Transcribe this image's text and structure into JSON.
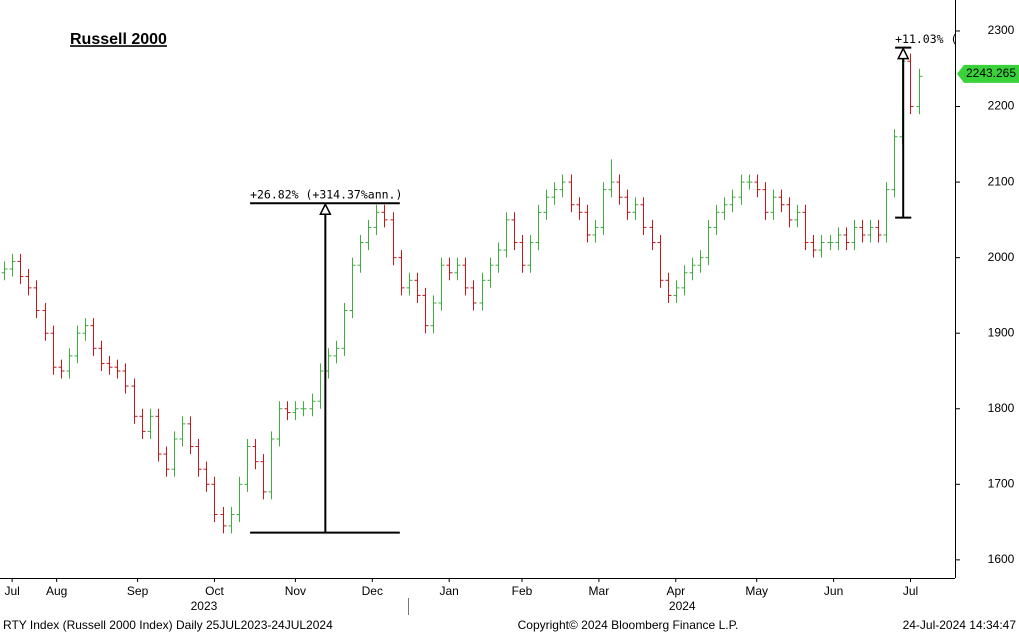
{
  "chart_data": {
    "type": "ohlc",
    "title": "Russell 2000",
    "up_color": "#3fae3f",
    "down_color": "#c8161d",
    "open": [
      1980,
      1985,
      1995,
      1975,
      1960,
      1930,
      1900,
      1855,
      1850,
      1870,
      1900,
      1910,
      1880,
      1860,
      1855,
      1850,
      1830,
      1790,
      1770,
      1790,
      1740,
      1720,
      1760,
      1780,
      1750,
      1720,
      1700,
      1660,
      1645,
      1660,
      1700,
      1750,
      1730,
      1690,
      1760,
      1800,
      1795,
      1800,
      1800,
      1810,
      1850,
      1870,
      1880,
      1930,
      1990,
      2020,
      2040,
      2060,
      2050,
      2000,
      1960,
      1970,
      1950,
      1910,
      1940,
      1990,
      1980,
      1990,
      1960,
      1940,
      1970,
      1990,
      2010,
      2050,
      2020,
      1990,
      2020,
      2060,
      2080,
      2090,
      2100,
      2070,
      2060,
      2030,
      2040,
      2090,
      2100,
      2080,
      2060,
      2070,
      2040,
      2020,
      1970,
      1950,
      1960,
      1980,
      1990,
      2000,
      2040,
      2060,
      2070,
      2080,
      2100,
      2100,
      2090,
      2060,
      2080,
      2070,
      2050,
      2060,
      2020,
      2010,
      2020,
      2020,
      2030,
      2020,
      2040,
      2030,
      2040,
      2030,
      2090,
      2160,
      2260,
      2200
    ],
    "high": [
      1995,
      2005,
      2005,
      1985,
      1970,
      1940,
      1910,
      1865,
      1880,
      1910,
      1920,
      1920,
      1890,
      1870,
      1865,
      1860,
      1840,
      1800,
      1800,
      1800,
      1750,
      1770,
      1790,
      1790,
      1760,
      1730,
      1710,
      1670,
      1670,
      1710,
      1760,
      1760,
      1740,
      1770,
      1810,
      1810,
      1810,
      1810,
      1820,
      1860,
      1880,
      1890,
      1940,
      2000,
      2030,
      2050,
      2070,
      2070,
      2060,
      2010,
      1980,
      1980,
      1960,
      1950,
      2000,
      2000,
      2000,
      2000,
      1970,
      1980,
      2000,
      2020,
      2060,
      2060,
      2030,
      2030,
      2070,
      2090,
      2100,
      2110,
      2110,
      2080,
      2070,
      2050,
      2100,
      2130,
      2110,
      2090,
      2080,
      2080,
      2050,
      2030,
      1980,
      1970,
      1990,
      2000,
      2010,
      2050,
      2070,
      2080,
      2090,
      2110,
      2110,
      2110,
      2100,
      2090,
      2090,
      2080,
      2070,
      2070,
      2030,
      2030,
      2030,
      2040,
      2040,
      2050,
      2050,
      2050,
      2050,
      2100,
      2170,
      2275,
      2270,
      2250
    ],
    "low": [
      1970,
      1975,
      1965,
      1950,
      1920,
      1890,
      1845,
      1840,
      1840,
      1860,
      1890,
      1870,
      1850,
      1845,
      1840,
      1820,
      1780,
      1760,
      1760,
      1730,
      1710,
      1710,
      1750,
      1740,
      1710,
      1690,
      1650,
      1635,
      1635,
      1650,
      1690,
      1720,
      1680,
      1680,
      1750,
      1785,
      1785,
      1790,
      1790,
      1800,
      1840,
      1860,
      1870,
      1920,
      1980,
      2010,
      2030,
      2040,
      1990,
      1950,
      1950,
      1940,
      1900,
      1900,
      1930,
      1970,
      1970,
      1950,
      1930,
      1930,
      1960,
      1980,
      2000,
      2010,
      1980,
      1980,
      2010,
      2050,
      2070,
      2080,
      2060,
      2050,
      2020,
      2020,
      2030,
      2080,
      2070,
      2050,
      2050,
      2030,
      2010,
      1960,
      1940,
      1940,
      1950,
      1970,
      1980,
      1990,
      2030,
      2050,
      2060,
      2070,
      2090,
      2080,
      2050,
      2050,
      2060,
      2040,
      2040,
      2010,
      2000,
      2000,
      2010,
      2010,
      2010,
      2010,
      2020,
      2020,
      2020,
      2020,
      2080,
      2150,
      2190,
      2190
    ],
    "close": [
      1985,
      1995,
      1975,
      1960,
      1930,
      1900,
      1855,
      1850,
      1870,
      1900,
      1910,
      1880,
      1860,
      1855,
      1850,
      1830,
      1790,
      1770,
      1790,
      1740,
      1720,
      1760,
      1780,
      1750,
      1720,
      1700,
      1660,
      1645,
      1660,
      1700,
      1750,
      1730,
      1690,
      1760,
      1800,
      1795,
      1800,
      1800,
      1810,
      1850,
      1870,
      1880,
      1930,
      1990,
      2020,
      2040,
      2060,
      2050,
      2000,
      1960,
      1970,
      1950,
      1910,
      1940,
      1990,
      1980,
      1990,
      1960,
      1940,
      1970,
      1990,
      2010,
      2050,
      2020,
      1990,
      2020,
      2060,
      2080,
      2090,
      2100,
      2070,
      2060,
      2030,
      2040,
      2090,
      2100,
      2080,
      2060,
      2070,
      2040,
      2020,
      1970,
      1950,
      1960,
      1980,
      1990,
      2000,
      2040,
      2060,
      2070,
      2080,
      2100,
      2100,
      2090,
      2060,
      2080,
      2070,
      2050,
      2060,
      2020,
      2010,
      2020,
      2020,
      2030,
      2020,
      2040,
      2030,
      2040,
      2030,
      2090,
      2160,
      2260,
      2200,
      2240
    ],
    "xlim": [
      -0.5,
      117.5
    ],
    "xticks": [
      {
        "value": 1,
        "label": "Jul"
      },
      {
        "value": 6.5,
        "label": "Aug"
      },
      {
        "value": 16.5,
        "label": "Sep"
      },
      {
        "value": 26,
        "label": "Oct"
      },
      {
        "value": 36,
        "label": "Nov"
      },
      {
        "value": 45.5,
        "label": "Dec"
      },
      {
        "value": 55,
        "label": "Jan"
      },
      {
        "value": 64,
        "label": "Feb"
      },
      {
        "value": 73.5,
        "label": "Mar"
      },
      {
        "value": 83,
        "label": "Apr"
      },
      {
        "value": 93,
        "label": "May"
      },
      {
        "value": 102.5,
        "label": "Jun"
      },
      {
        "value": 112,
        "label": "Jul"
      }
    ],
    "year_labels": [
      {
        "value": 24.7,
        "label": "2023"
      },
      {
        "value": 83.8,
        "label": "2024"
      }
    ],
    "ylim": [
      1576,
      2341
    ],
    "yticks": [
      1600,
      1700,
      1800,
      1900,
      2000,
      2100,
      2200,
      2300
    ],
    "last_price": 2243.265,
    "annotations": [
      {
        "text": "+26.82% (+314.37%ann.)",
        "low": 1636,
        "high": 2072,
        "x_from": 30.4,
        "x_to": 48.9,
        "x_at": 39.7
      },
      {
        "text": "+11.03% (",
        "low": 2053,
        "high": 2278,
        "x_from": 110.1,
        "x_to": 112.1,
        "x_at": 111.1
      }
    ],
    "footer": {
      "left": "RTY Index (Russell 2000 Index)  Daily 25JUL2023-24JUL2024",
      "center": "Copyright© 2024 Bloomberg Finance L.P.",
      "right": "24-Jul-2024 14:34:47"
    }
  }
}
